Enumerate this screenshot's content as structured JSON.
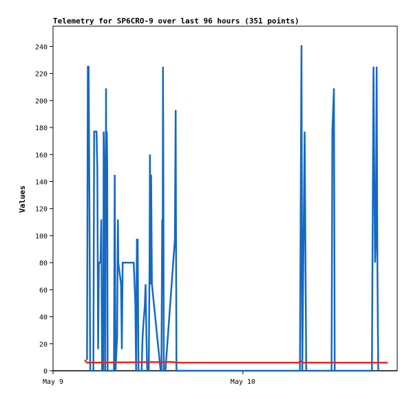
{
  "chart_data": {
    "type": "line",
    "title": "Telemetry for SP6CRO-9 over last 96 hours (351 points)",
    "xlabel": "",
    "ylabel": "Values",
    "x_tick_labels": [
      "May 9",
      "May 10"
    ],
    "x_ticks_hours": [
      0,
      24
    ],
    "xlim_hours": [
      0,
      43.5
    ],
    "ylim": [
      0,
      255
    ],
    "y_ticks": [
      0,
      20,
      40,
      60,
      80,
      100,
      120,
      140,
      160,
      180,
      200,
      220,
      240
    ],
    "grid": false,
    "legend": "none",
    "series": [
      {
        "color": "#1469c4",
        "points": [
          [
            4.3,
            8
          ],
          [
            4.4,
            225
          ],
          [
            4.5,
            225
          ],
          [
            4.6,
            128
          ],
          [
            4.7,
            0
          ],
          [
            5.1,
            0
          ],
          [
            5.2,
            177
          ],
          [
            5.5,
            177
          ],
          [
            5.6,
            150
          ],
          [
            5.7,
            16
          ],
          [
            5.8,
            80
          ],
          [
            6.0,
            80
          ],
          [
            6.1,
            112
          ],
          [
            6.2,
            0
          ],
          [
            6.35,
            0
          ],
          [
            6.4,
            177
          ],
          [
            6.5,
            145
          ],
          [
            6.6,
            0
          ],
          [
            6.7,
            209
          ],
          [
            6.75,
            103
          ],
          [
            6.8,
            177
          ],
          [
            6.85,
            152
          ],
          [
            6.9,
            0
          ],
          [
            7.7,
            0
          ],
          [
            7.8,
            145
          ],
          [
            7.9,
            0
          ],
          [
            8.1,
            25
          ],
          [
            8.2,
            112
          ],
          [
            8.25,
            80
          ],
          [
            8.6,
            64
          ],
          [
            8.7,
            16
          ],
          [
            8.8,
            80
          ],
          [
            10.2,
            80
          ],
          [
            10.3,
            65
          ],
          [
            10.4,
            50
          ],
          [
            10.5,
            0
          ],
          [
            10.6,
            97
          ],
          [
            10.7,
            97
          ],
          [
            10.8,
            0
          ],
          [
            10.9,
            0
          ],
          [
            11.2,
            0
          ],
          [
            11.3,
            22
          ],
          [
            11.4,
            33
          ],
          [
            11.6,
            48
          ],
          [
            11.7,
            64
          ],
          [
            11.8,
            28
          ],
          [
            11.9,
            0
          ],
          [
            12.1,
            0
          ],
          [
            12.2,
            80
          ],
          [
            12.25,
            160
          ],
          [
            12.35,
            64
          ],
          [
            12.4,
            145
          ],
          [
            12.5,
            64
          ],
          [
            13.6,
            0
          ],
          [
            13.7,
            0
          ],
          [
            13.8,
            112
          ],
          [
            13.85,
            65
          ],
          [
            13.9,
            225
          ],
          [
            13.95,
            137
          ],
          [
            14.0,
            0
          ],
          [
            14.2,
            0
          ],
          [
            15.4,
            97
          ],
          [
            15.5,
            193
          ],
          [
            15.6,
            0
          ],
          [
            15.7,
            0
          ],
          [
            31.2,
            0
          ],
          [
            31.4,
            241
          ],
          [
            31.5,
            0
          ],
          [
            31.8,
            177
          ],
          [
            31.9,
            89
          ],
          [
            32.0,
            0
          ],
          [
            35.2,
            0
          ],
          [
            35.3,
            177
          ],
          [
            35.4,
            193
          ],
          [
            35.5,
            209
          ],
          [
            35.6,
            0
          ],
          [
            40.3,
            0
          ],
          [
            40.4,
            112
          ],
          [
            40.5,
            225
          ],
          [
            40.6,
            145
          ],
          [
            40.7,
            80
          ],
          [
            40.8,
            97
          ],
          [
            40.9,
            225
          ],
          [
            41.0,
            72
          ],
          [
            41.1,
            0
          ]
        ]
      },
      {
        "color": "#e8281e",
        "points": [
          [
            4.0,
            8
          ],
          [
            4.3,
            6
          ],
          [
            15.0,
            6.5
          ],
          [
            15.7,
            6
          ],
          [
            31.0,
            6
          ],
          [
            31.3,
            7
          ],
          [
            31.6,
            6
          ],
          [
            40.2,
            6
          ],
          [
            42.3,
            6
          ]
        ]
      }
    ]
  }
}
